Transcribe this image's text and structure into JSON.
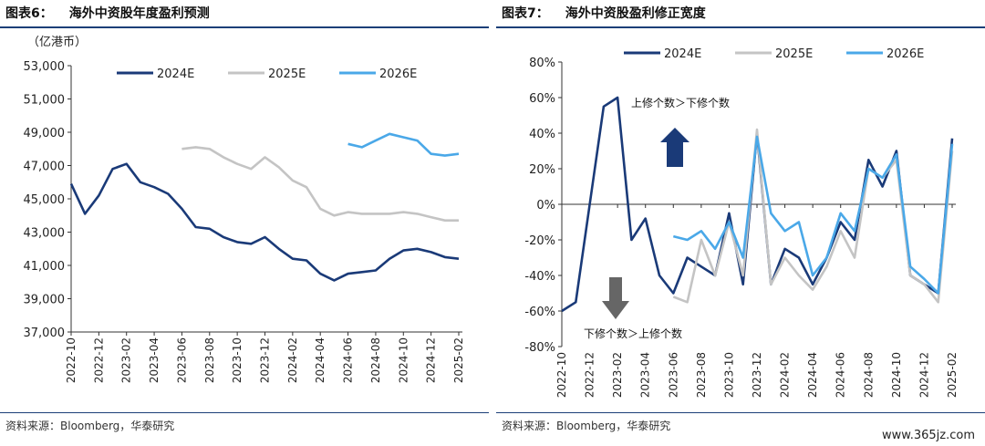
{
  "watermark": "www.365jz.com",
  "colors": {
    "2024E": "#1a3a78",
    "2025E": "#c4c4c4",
    "2026E": "#4aa8e8",
    "arrow_up": "#1a3a78",
    "arrow_down": "#666666"
  },
  "x_ticks": [
    "2022-10",
    "2022-12",
    "2023-02",
    "2023-04",
    "2023-06",
    "2023-08",
    "2023-10",
    "2023-12",
    "2024-02",
    "2024-04",
    "2024-06",
    "2024-08",
    "2024-10",
    "2024-12",
    "2025-02"
  ],
  "chart_data": [
    {
      "type": "line",
      "figure": "图表6：",
      "title": "海外中资股年度盈利预测",
      "ylabel": "（亿港币）",
      "source": "资料来源：Bloomberg，华泰研究",
      "ylim": [
        37000,
        53000
      ],
      "y_ticks": [
        "53,000",
        "51,000",
        "49,000",
        "47,000",
        "45,000",
        "43,000",
        "41,000",
        "39,000",
        "37,000"
      ],
      "legend_position": "top",
      "series": [
        {
          "name": "2024E",
          "x": [
            "2022-10",
            "2022-11",
            "2022-12",
            "2023-01",
            "2023-02",
            "2023-03",
            "2023-04",
            "2023-05",
            "2023-06",
            "2023-07",
            "2023-08",
            "2023-09",
            "2023-10",
            "2023-11",
            "2023-12",
            "2024-01",
            "2024-02",
            "2024-03",
            "2024-04",
            "2024-05",
            "2024-06",
            "2024-07",
            "2024-08",
            "2024-09",
            "2024-10",
            "2024-11",
            "2024-12",
            "2025-01",
            "2025-02"
          ],
          "values": [
            45900,
            44100,
            45200,
            46800,
            47100,
            46000,
            45700,
            45300,
            44400,
            43300,
            43200,
            42700,
            42400,
            42300,
            42700,
            42000,
            41400,
            41300,
            40500,
            40100,
            40500,
            40600,
            40700,
            41400,
            41900,
            42000,
            41800,
            41500,
            41400
          ]
        },
        {
          "name": "2025E",
          "x": [
            "2023-06",
            "2023-07",
            "2023-08",
            "2023-09",
            "2023-10",
            "2023-11",
            "2023-12",
            "2024-01",
            "2024-02",
            "2024-03",
            "2024-04",
            "2024-05",
            "2024-06",
            "2024-07",
            "2024-08",
            "2024-09",
            "2024-10",
            "2024-11",
            "2024-12",
            "2025-01",
            "2025-02"
          ],
          "values": [
            48000,
            48100,
            48000,
            47500,
            47100,
            46800,
            47500,
            46900,
            46100,
            45700,
            44400,
            44000,
            44200,
            44100,
            44100,
            44100,
            44200,
            44100,
            43900,
            43700,
            43700
          ]
        },
        {
          "name": "2026E",
          "x": [
            "2024-06",
            "2024-07",
            "2024-08",
            "2024-09",
            "2024-10",
            "2024-11",
            "2024-12",
            "2025-01",
            "2025-02"
          ],
          "values": [
            48300,
            48100,
            48500,
            48900,
            48700,
            48500,
            47700,
            47600,
            47700
          ]
        }
      ]
    },
    {
      "type": "line",
      "figure": "图表7：",
      "title": "海外中资股盈利修正宽度",
      "source": "资料来源：Bloomberg，华泰研究",
      "ylim": [
        -80,
        80
      ],
      "y_ticks": [
        "80%",
        "60%",
        "40%",
        "20%",
        "0%",
        "-20%",
        "-40%",
        "-60%",
        "-80%"
      ],
      "legend_position": "top",
      "annotations": {
        "up": "上修个数＞下修个数",
        "down": "下修个数＞上修个数"
      },
      "series": [
        {
          "name": "2024E",
          "x": [
            "2022-10",
            "2022-11",
            "2022-12",
            "2023-01",
            "2023-02",
            "2023-03",
            "2023-04",
            "2023-05",
            "2023-06",
            "2023-07",
            "2023-08",
            "2023-09",
            "2023-10",
            "2023-11",
            "2023-12",
            "2024-01",
            "2024-02",
            "2024-03",
            "2024-04",
            "2024-05",
            "2024-06",
            "2024-07",
            "2024-08",
            "2024-09",
            "2024-10",
            "2024-11",
            "2024-12",
            "2025-01",
            "2025-02"
          ],
          "values": [
            -60,
            -55,
            0,
            55,
            60,
            -20,
            -8,
            -40,
            -50,
            -30,
            -35,
            -40,
            -5,
            -45,
            40,
            -45,
            -25,
            -30,
            -45,
            -30,
            -10,
            -20,
            25,
            10,
            30,
            -40,
            -45,
            -50,
            37
          ]
        },
        {
          "name": "2025E",
          "x": [
            "2023-06",
            "2023-07",
            "2023-08",
            "2023-09",
            "2023-10",
            "2023-11",
            "2023-12",
            "2024-01",
            "2024-02",
            "2024-03",
            "2024-04",
            "2024-05",
            "2024-06",
            "2024-07",
            "2024-08",
            "2024-09",
            "2024-10",
            "2024-11",
            "2024-12",
            "2025-01",
            "2025-02"
          ],
          "values": [
            -52,
            -55,
            -20,
            -40,
            -10,
            -40,
            42,
            -45,
            -30,
            -40,
            -48,
            -35,
            -15,
            -30,
            20,
            15,
            25,
            -40,
            -45,
            -55,
            30
          ]
        },
        {
          "name": "2026E",
          "x": [
            "2023-06",
            "2023-07",
            "2023-08",
            "2023-09",
            "2023-10",
            "2023-11",
            "2023-12",
            "2024-01",
            "2024-02",
            "2024-03",
            "2024-04",
            "2024-05",
            "2024-06",
            "2024-07",
            "2024-08",
            "2024-09",
            "2024-10",
            "2024-11",
            "2024-12",
            "2025-01",
            "2025-02"
          ],
          "values": [
            -18,
            -20,
            -15,
            -25,
            -10,
            -30,
            38,
            -5,
            -15,
            -10,
            -40,
            -30,
            -5,
            -15,
            20,
            15,
            28,
            -35,
            -42,
            -50,
            34
          ]
        }
      ]
    }
  ]
}
